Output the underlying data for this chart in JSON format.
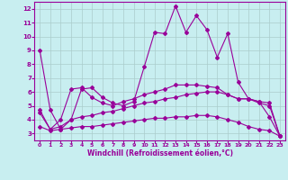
{
  "xlabel": "Windchill (Refroidissement éolien,°C)",
  "bg_color": "#c8eef0",
  "line_color": "#990099",
  "grid_color": "#aacccc",
  "xlim": [
    -0.5,
    23.5
  ],
  "ylim": [
    2.5,
    12.5
  ],
  "xticks": [
    0,
    1,
    2,
    3,
    4,
    5,
    6,
    7,
    8,
    9,
    10,
    11,
    12,
    13,
    14,
    15,
    16,
    17,
    18,
    19,
    20,
    21,
    22,
    23
  ],
  "yticks": [
    3,
    4,
    5,
    6,
    7,
    8,
    9,
    10,
    11,
    12
  ],
  "line1_x": [
    0,
    1,
    2,
    3,
    4,
    5,
    6,
    7,
    8,
    9,
    10,
    11,
    12,
    13,
    14,
    15,
    16,
    17,
    18,
    19,
    20,
    21,
    22,
    23
  ],
  "line1_y": [
    9.0,
    4.7,
    3.3,
    4.0,
    6.2,
    6.3,
    5.6,
    5.2,
    5.0,
    5.3,
    7.8,
    10.3,
    10.2,
    12.2,
    10.3,
    11.5,
    10.5,
    8.5,
    10.2,
    6.7,
    5.5,
    5.3,
    4.2,
    2.8
  ],
  "line2_x": [
    0,
    1,
    2,
    3,
    4,
    5,
    6,
    7,
    8,
    9,
    10,
    11,
    12,
    13,
    14,
    15,
    16,
    17,
    18,
    19,
    20,
    21,
    22,
    23
  ],
  "line2_y": [
    4.7,
    3.3,
    4.0,
    6.2,
    6.3,
    5.6,
    5.2,
    5.0,
    5.3,
    5.5,
    5.8,
    6.0,
    6.2,
    6.5,
    6.5,
    6.5,
    6.4,
    6.3,
    5.8,
    5.5,
    5.5,
    5.3,
    5.2,
    2.8
  ],
  "line3_x": [
    0,
    1,
    2,
    3,
    4,
    5,
    6,
    7,
    8,
    9,
    10,
    11,
    12,
    13,
    14,
    15,
    16,
    17,
    18,
    19,
    20,
    21,
    22,
    23
  ],
  "line3_y": [
    4.5,
    3.3,
    3.5,
    4.0,
    4.2,
    4.3,
    4.5,
    4.6,
    4.8,
    5.0,
    5.2,
    5.3,
    5.5,
    5.6,
    5.8,
    5.9,
    6.0,
    6.0,
    5.8,
    5.5,
    5.5,
    5.2,
    5.0,
    2.8
  ],
  "line4_x": [
    0,
    1,
    2,
    3,
    4,
    5,
    6,
    7,
    8,
    9,
    10,
    11,
    12,
    13,
    14,
    15,
    16,
    17,
    18,
    19,
    20,
    21,
    22,
    23
  ],
  "line4_y": [
    3.5,
    3.2,
    3.3,
    3.4,
    3.5,
    3.5,
    3.6,
    3.7,
    3.8,
    3.9,
    4.0,
    4.1,
    4.1,
    4.2,
    4.2,
    4.3,
    4.3,
    4.2,
    4.0,
    3.8,
    3.5,
    3.3,
    3.2,
    2.8
  ],
  "marker": "D",
  "markersize": 2.0,
  "linewidth": 0.8
}
